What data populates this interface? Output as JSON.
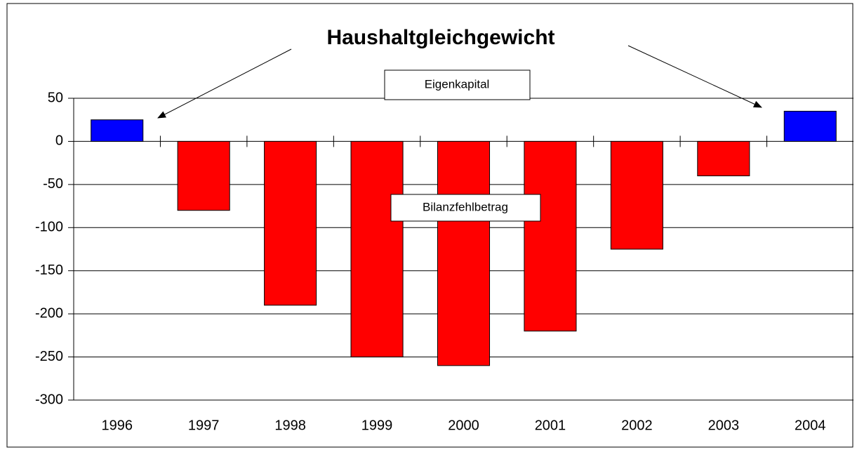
{
  "chart_data": {
    "type": "bar",
    "title": "Haushaltgleichgewicht",
    "categories": [
      "1996",
      "1997",
      "1998",
      "1999",
      "2000",
      "2001",
      "2002",
      "2003",
      "2004"
    ],
    "values": [
      25,
      -80,
      -190,
      -250,
      -260,
      -220,
      -125,
      -40,
      35
    ],
    "colors": [
      "#0000ff",
      "#ff0000",
      "#ff0000",
      "#ff0000",
      "#ff0000",
      "#ff0000",
      "#ff0000",
      "#ff0000",
      "#0000ff"
    ],
    "ylim": [
      -300,
      50
    ],
    "yticks": [
      50,
      0,
      -50,
      -100,
      -150,
      -200,
      -250,
      -300
    ],
    "grid": true,
    "annotations": [
      "Eigenkapital",
      "Bilanzfehlbetrag"
    ]
  }
}
